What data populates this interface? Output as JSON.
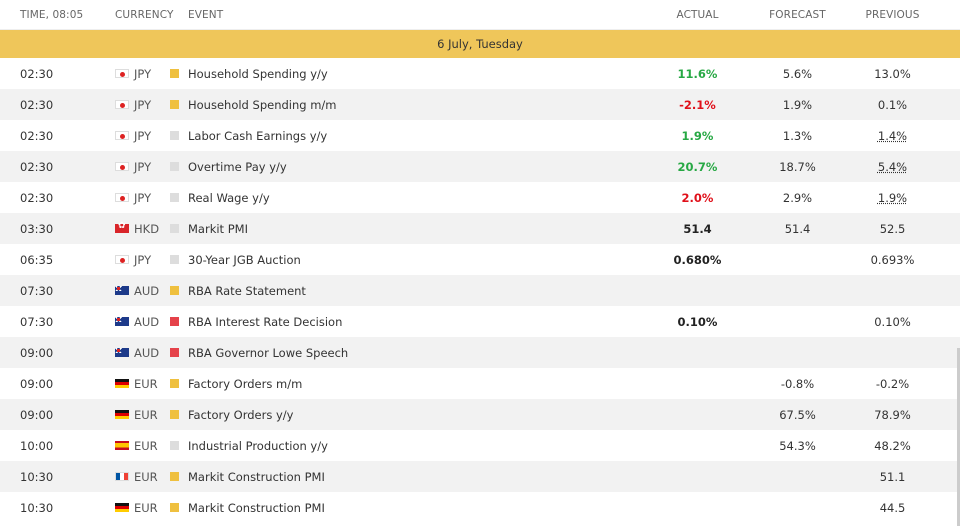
{
  "header": {
    "time_label": "TIME,",
    "time_value": "08:05",
    "currency": "CURRENCY",
    "event": "EVENT",
    "actual": "ACTUAL",
    "forecast": "FORECAST",
    "previous": "PREVIOUS"
  },
  "day": "6 July, Tuesday",
  "colors": {
    "positive": "#27a844",
    "negative": "#e0101a",
    "impact_medium": "#efc03f",
    "impact_low": "#dddddd",
    "impact_high": "#e5424a",
    "day_bar": "#efc65a"
  },
  "rows": [
    {
      "time": "02:30",
      "flag": "jp",
      "currency": "JPY",
      "impact": "medium",
      "event": "Household Spending y/y",
      "actual": "11.6%",
      "actual_color": "positive",
      "forecast": "5.6%",
      "previous": "13.0%",
      "prev_ul": false
    },
    {
      "time": "02:30",
      "flag": "jp",
      "currency": "JPY",
      "impact": "medium",
      "event": "Household Spending m/m",
      "actual": "-2.1%",
      "actual_color": "negative",
      "forecast": "1.9%",
      "previous": "0.1%",
      "prev_ul": false
    },
    {
      "time": "02:30",
      "flag": "jp",
      "currency": "JPY",
      "impact": "low",
      "event": "Labor Cash Earnings y/y",
      "actual": "1.9%",
      "actual_color": "positive",
      "forecast": "1.3%",
      "previous": "1.4%",
      "prev_ul": true
    },
    {
      "time": "02:30",
      "flag": "jp",
      "currency": "JPY",
      "impact": "low",
      "event": "Overtime Pay y/y",
      "actual": "20.7%",
      "actual_color": "positive",
      "forecast": "18.7%",
      "previous": "5.4%",
      "prev_ul": true
    },
    {
      "time": "02:30",
      "flag": "jp",
      "currency": "JPY",
      "impact": "low",
      "event": "Real Wage y/y",
      "actual": "2.0%",
      "actual_color": "negative",
      "forecast": "2.9%",
      "previous": "1.9%",
      "prev_ul": true
    },
    {
      "time": "03:30",
      "flag": "hk",
      "currency": "HKD",
      "impact": "low",
      "event": "Markit PMI",
      "actual": "51.4",
      "actual_color": "neutral",
      "forecast": "51.4",
      "previous": "52.5",
      "prev_ul": false
    },
    {
      "time": "06:35",
      "flag": "jp",
      "currency": "JPY",
      "impact": "low",
      "event": "30-Year JGB Auction",
      "actual": "0.680%",
      "actual_color": "neutral",
      "forecast": "",
      "previous": "0.693%",
      "prev_ul": false
    },
    {
      "time": "07:30",
      "flag": "au",
      "currency": "AUD",
      "impact": "medium",
      "event": "RBA Rate Statement",
      "actual": "",
      "actual_color": "neutral",
      "forecast": "",
      "previous": "",
      "prev_ul": false
    },
    {
      "time": "07:30",
      "flag": "au",
      "currency": "AUD",
      "impact": "high",
      "event": "RBA Interest Rate Decision",
      "actual": "0.10%",
      "actual_color": "neutral",
      "forecast": "",
      "previous": "0.10%",
      "prev_ul": false
    },
    {
      "time": "09:00",
      "flag": "au",
      "currency": "AUD",
      "impact": "high",
      "event": "RBA Governor Lowe Speech",
      "actual": "",
      "actual_color": "neutral",
      "forecast": "",
      "previous": "",
      "prev_ul": false
    },
    {
      "time": "09:00",
      "flag": "de",
      "currency": "EUR",
      "impact": "medium",
      "event": "Factory Orders m/m",
      "actual": "",
      "actual_color": "neutral",
      "forecast": "-0.8%",
      "previous": "-0.2%",
      "prev_ul": false
    },
    {
      "time": "09:00",
      "flag": "de",
      "currency": "EUR",
      "impact": "medium",
      "event": "Factory Orders y/y",
      "actual": "",
      "actual_color": "neutral",
      "forecast": "67.5%",
      "previous": "78.9%",
      "prev_ul": false
    },
    {
      "time": "10:00",
      "flag": "es",
      "currency": "EUR",
      "impact": "low",
      "event": "Industrial Production y/y",
      "actual": "",
      "actual_color": "neutral",
      "forecast": "54.3%",
      "previous": "48.2%",
      "prev_ul": false
    },
    {
      "time": "10:30",
      "flag": "fr",
      "currency": "EUR",
      "impact": "medium",
      "event": "Markit Construction PMI",
      "actual": "",
      "actual_color": "neutral",
      "forecast": "",
      "previous": "51.1",
      "prev_ul": false
    },
    {
      "time": "10:30",
      "flag": "de",
      "currency": "EUR",
      "impact": "medium",
      "event": "Markit Construction PMI",
      "actual": "",
      "actual_color": "neutral",
      "forecast": "",
      "previous": "44.5",
      "prev_ul": false
    }
  ]
}
